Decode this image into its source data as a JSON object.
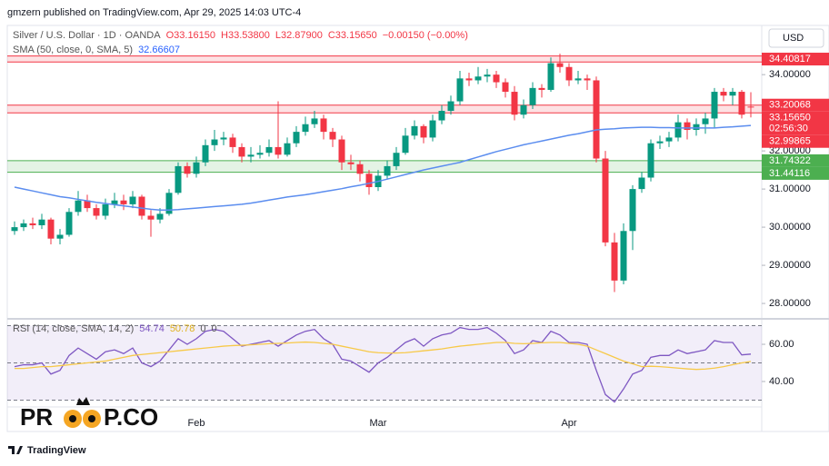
{
  "header": "gmzern published on TradingView.com, Apr 29, 2025 14:03 UTC-4",
  "currency": "USD",
  "watermark": {
    "left": "PR",
    "right": "P.CO"
  },
  "footer": "TradingView",
  "chart_data": [
    {
      "type": "candlestick",
      "symbol": "Silver / U.S. Dollar · 1D · OANDA",
      "ohlc_legend": [
        "O33.16150",
        "H33.53800",
        "L32.87900",
        "C33.15650",
        "−0.00150 (−0.00%)"
      ],
      "up_color": "#089981",
      "down_color": "#f23645",
      "ylim": [
        27.62,
        35.29
      ],
      "yticks": [
        {
          "value": 28,
          "label": "28.00000"
        },
        {
          "value": 29,
          "label": "29.00000"
        },
        {
          "value": 30,
          "label": "30.00000"
        },
        {
          "value": 31,
          "label": "31.00000"
        },
        {
          "value": 32,
          "label": "32.00000"
        },
        {
          "value": 34,
          "label": "34.00000"
        }
      ],
      "open": [
        29.9,
        30.0,
        30.1,
        30.05,
        30.2,
        29.7,
        29.8,
        30.4,
        30.7,
        30.5,
        30.3,
        30.6,
        30.7,
        30.6,
        30.8,
        30.3,
        30.2,
        30.35,
        30.9,
        31.6,
        31.4,
        31.7,
        32.15,
        32.3,
        32.35,
        32.1,
        31.85,
        31.9,
        31.95,
        32.1,
        31.9,
        32.2,
        32.5,
        32.7,
        32.85,
        32.5,
        32.3,
        31.7,
        31.65,
        31.4,
        31.05,
        31.35,
        31.6,
        31.95,
        32.4,
        32.65,
        32.35,
        32.8,
        33.05,
        33.3,
        33.9,
        33.85,
        33.95,
        34.0,
        33.8,
        33.55,
        32.95,
        33.2,
        33.65,
        33.6,
        34.3,
        34.2,
        33.85,
        33.9,
        33.85,
        31.8,
        29.6,
        28.6,
        29.9,
        31.0,
        31.3,
        32.2,
        32.25,
        32.35,
        32.75,
        32.55,
        32.7,
        32.85,
        33.55,
        33.45,
        33.55,
        33.1615
      ],
      "high": [
        30.15,
        30.2,
        30.25,
        30.35,
        30.25,
        29.95,
        30.5,
        30.95,
        30.85,
        30.6,
        30.75,
        30.9,
        30.85,
        30.95,
        30.85,
        30.45,
        30.5,
        31.0,
        31.7,
        31.7,
        31.85,
        32.3,
        32.55,
        32.5,
        32.45,
        32.2,
        32.1,
        32.15,
        32.3,
        33.3,
        32.35,
        32.65,
        32.9,
        33.05,
        32.95,
        32.6,
        32.4,
        31.9,
        31.75,
        31.5,
        31.5,
        31.75,
        32.1,
        32.6,
        32.8,
        32.7,
        32.95,
        33.2,
        33.45,
        34.1,
        34.05,
        34.2,
        34.15,
        34.1,
        33.9,
        33.7,
        33.35,
        33.8,
        33.75,
        34.45,
        34.55,
        34.3,
        34.1,
        34.0,
        33.95,
        32.0,
        29.85,
        30.1,
        31.1,
        31.45,
        32.3,
        32.4,
        32.5,
        32.95,
        32.85,
        32.85,
        33.0,
        33.65,
        33.65,
        33.65,
        33.6,
        33.538
      ],
      "low": [
        29.8,
        29.9,
        29.95,
        29.95,
        29.55,
        29.55,
        29.75,
        30.3,
        30.4,
        30.2,
        30.2,
        30.5,
        30.45,
        30.5,
        30.2,
        29.75,
        30.1,
        30.3,
        30.85,
        31.3,
        31.3,
        31.6,
        32.0,
        32.15,
        31.95,
        31.7,
        31.7,
        31.8,
        31.85,
        31.8,
        31.85,
        32.1,
        32.4,
        32.6,
        32.3,
        32.1,
        31.5,
        31.5,
        31.2,
        30.85,
        30.95,
        31.25,
        31.5,
        31.9,
        32.3,
        32.2,
        32.25,
        32.7,
        32.95,
        33.2,
        33.7,
        33.75,
        33.8,
        33.65,
        33.4,
        32.8,
        32.85,
        33.1,
        33.4,
        33.55,
        34.05,
        33.7,
        33.75,
        33.6,
        31.7,
        29.5,
        28.3,
        28.5,
        29.4,
        30.9,
        31.2,
        32.05,
        32.1,
        32.25,
        32.3,
        32.4,
        32.45,
        32.6,
        33.3,
        33.2,
        32.85,
        32.879
      ],
      "close": [
        30.0,
        30.1,
        30.05,
        30.2,
        29.7,
        29.8,
        30.4,
        30.7,
        30.5,
        30.3,
        30.6,
        30.7,
        30.6,
        30.8,
        30.3,
        30.2,
        30.35,
        30.9,
        31.6,
        31.4,
        31.7,
        32.15,
        32.3,
        32.35,
        32.1,
        31.85,
        31.9,
        31.95,
        32.1,
        31.9,
        32.2,
        32.5,
        32.7,
        32.85,
        32.5,
        32.3,
        31.7,
        31.65,
        31.4,
        31.05,
        31.35,
        31.6,
        31.95,
        32.4,
        32.65,
        32.35,
        32.8,
        33.05,
        33.3,
        33.9,
        33.85,
        33.95,
        34.0,
        33.8,
        33.55,
        32.95,
        33.2,
        33.65,
        33.6,
        34.3,
        34.2,
        33.85,
        33.9,
        33.85,
        31.8,
        29.6,
        28.6,
        29.9,
        31.0,
        31.3,
        32.2,
        32.25,
        32.35,
        32.75,
        32.55,
        32.7,
        32.85,
        33.55,
        33.45,
        33.55,
        32.95,
        33.1565
      ],
      "overlays": [
        {
          "name": "SMA (50, close, 0, SMA, 5)",
          "legend_value": 32.66607,
          "color": "#5b8def",
          "values": [
            31.05,
            31.0,
            30.95,
            30.9,
            30.85,
            30.8,
            30.77,
            30.73,
            30.69,
            30.65,
            30.62,
            30.59,
            30.56,
            30.53,
            30.5,
            30.47,
            30.45,
            30.45,
            30.46,
            30.48,
            30.5,
            30.52,
            30.54,
            30.56,
            30.58,
            30.6,
            30.63,
            30.67,
            30.71,
            30.75,
            30.79,
            30.82,
            30.85,
            30.89,
            30.93,
            30.97,
            31.01,
            31.06,
            31.1,
            31.15,
            31.2,
            31.26,
            31.32,
            31.38,
            31.44,
            31.5,
            31.55,
            31.6,
            31.65,
            31.7,
            31.77,
            31.84,
            31.91,
            31.98,
            32.04,
            32.1,
            32.16,
            32.21,
            32.26,
            32.31,
            32.36,
            32.41,
            32.45,
            32.5,
            32.55,
            32.57,
            32.58,
            32.6,
            32.61,
            32.62,
            32.62,
            32.61,
            32.61,
            32.6,
            32.6,
            32.6,
            32.6,
            32.6,
            32.62,
            32.63,
            32.65,
            32.66607
          ]
        }
      ],
      "zones": [
        {
          "low": 34.33,
          "high": 34.49,
          "color": "#f23645"
        },
        {
          "low": 32.99865,
          "high": 33.20068,
          "color": "#f23645"
        },
        {
          "low": 31.44116,
          "high": 31.74322,
          "color": "#4caf50"
        }
      ],
      "badges": [
        {
          "value": 34.40817,
          "color": "#f23645"
        },
        {
          "value": 33.20068,
          "color": "#f23645"
        },
        {
          "value": 33.1565,
          "label": "33.15650",
          "countdown": "02:56:30",
          "color": "#f23645"
        },
        {
          "value": 32.99865,
          "color": "#f23645"
        },
        {
          "value": 31.74322,
          "color": "#4caf50"
        },
        {
          "value": 31.44116,
          "color": "#4caf50"
        }
      ]
    },
    {
      "type": "line",
      "legend": "RSI (14, close, SMA, 14, 2)",
      "legend_values": [
        54.74,
        50.78,
        0,
        0
      ],
      "ylim": [
        26.8,
        73.2
      ],
      "yticks": [
        {
          "value": 40,
          "label": "40.00"
        },
        {
          "value": 60,
          "label": "60.00"
        }
      ],
      "levels": [
        70,
        50,
        30
      ],
      "band_color": "#7e57c2",
      "categories": [
        null,
        null,
        null,
        null,
        null,
        null,
        null,
        null,
        null,
        null,
        null,
        null,
        null,
        null,
        null,
        null,
        null,
        null,
        null,
        null,
        "Feb",
        null,
        null,
        null,
        null,
        null,
        null,
        null,
        null,
        null,
        null,
        null,
        null,
        null,
        null,
        null,
        null,
        null,
        null,
        null,
        "Mar",
        null,
        null,
        null,
        null,
        null,
        null,
        null,
        null,
        null,
        null,
        null,
        null,
        null,
        null,
        null,
        null,
        null,
        null,
        null,
        null,
        "Apr",
        null,
        null,
        null,
        null,
        null,
        null,
        null,
        null,
        null,
        null,
        null,
        null,
        null,
        null,
        null,
        null,
        null,
        null,
        null,
        null
      ],
      "series": [
        {
          "color": "#7e57c2",
          "values": [
            48,
            49,
            49,
            50,
            44,
            46,
            54,
            58,
            55,
            52,
            56,
            57,
            55,
            58,
            50,
            48,
            51,
            57,
            63,
            60,
            63,
            67,
            68,
            67,
            63,
            59,
            60,
            61,
            62,
            59,
            62,
            65,
            67,
            68,
            63,
            60,
            52,
            51,
            48,
            45,
            50,
            53,
            57,
            61,
            63,
            59,
            63,
            65,
            66,
            69,
            68,
            68,
            69,
            66,
            62,
            55,
            57,
            62,
            61,
            67,
            65,
            61,
            61,
            60,
            46,
            33,
            29,
            36,
            44,
            46,
            53,
            54,
            54,
            57,
            55,
            56,
            57,
            62,
            61,
            61,
            54.3,
            54.74
          ]
        },
        {
          "color": "#f7c948",
          "values": [
            47,
            47,
            47.5,
            48,
            48,
            48.5,
            49,
            49.5,
            50,
            50.5,
            51,
            52,
            53,
            54,
            54.5,
            55,
            55.5,
            56,
            56.5,
            57,
            57.5,
            58,
            58.5,
            59,
            59.3,
            59.5,
            59.7,
            60,
            60.3,
            60.5,
            60.7,
            61,
            61.2,
            61,
            60.5,
            60,
            59,
            58,
            57,
            56,
            55.5,
            55.3,
            55.3,
            55.5,
            56,
            56.5,
            57,
            57.5,
            58.3,
            59,
            59.5,
            60,
            60.5,
            61,
            61,
            60.5,
            60.3,
            60.5,
            60.8,
            61,
            61,
            60.5,
            60,
            59,
            57,
            55,
            53,
            51,
            49.5,
            48,
            48.2,
            48,
            47.6,
            47.2,
            46.8,
            46.5,
            46.7,
            47.2,
            48,
            49,
            50,
            50.78
          ]
        }
      ]
    }
  ]
}
